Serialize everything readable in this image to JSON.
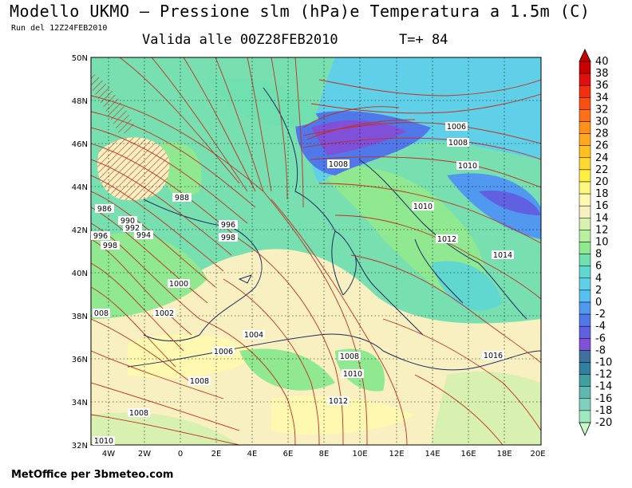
{
  "header": {
    "title": "Modello UKMO — Pressione slm (hPa)e Temperatura a 1.5m (C)",
    "run": "Run del 12Z24FEB2010",
    "valid": "Valida alle 00Z28FEB2010",
    "timestep": "T=+ 84"
  },
  "footer": {
    "credit": "MetOffice per 3bmeteo.com"
  },
  "map": {
    "lon_range": [
      -5,
      20
    ],
    "lat_range": [
      32,
      50
    ],
    "lon_ticks": [
      "4W",
      "2W",
      "0",
      "2E",
      "4E",
      "6E",
      "8E",
      "10E",
      "12E",
      "14E",
      "16E",
      "18E",
      "20E"
    ],
    "lat_ticks": [
      "50N",
      "48N",
      "46N",
      "44N",
      "42N",
      "40N",
      "38N",
      "36N",
      "34N",
      "32N"
    ],
    "isobar_labels": [
      "986",
      "988",
      "990",
      "992",
      "994",
      "996",
      "996",
      "998",
      "998",
      "1000",
      "1002",
      "1004",
      "1006",
      "1006",
      "1008",
      "1008",
      "1008",
      "1008",
      "1008",
      "1010",
      "1010",
      "1010",
      "1012",
      "1012",
      "1014",
      "1016",
      "1010",
      "008"
    ]
  },
  "colorbar": {
    "labels": [
      "40",
      "38",
      "36",
      "34",
      "32",
      "30",
      "28",
      "26",
      "24",
      "22",
      "20",
      "18",
      "16",
      "14",
      "12",
      "10",
      "8",
      "6",
      "4",
      "2",
      "0",
      "-2",
      "-4",
      "-6",
      "-8",
      "-10",
      "-12",
      "-14",
      "-16",
      "-18",
      "-20"
    ],
    "colors": [
      "#c80000",
      "#e01010",
      "#f03010",
      "#f85010",
      "#ff7018",
      "#ff9018",
      "#ffa820",
      "#ffc020",
      "#ffd830",
      "#fff040",
      "#fff880",
      "#fff8b0",
      "#f8f0c0",
      "#d8f0b0",
      "#b8f0a0",
      "#90e890",
      "#70e0b0",
      "#60d8d0",
      "#60d0e8",
      "#58c0f0",
      "#5098f0",
      "#5078e8",
      "#6060e0",
      "#8050d8",
      "#4070a0",
      "#3080a0",
      "#40a0a0",
      "#60b8b0",
      "#80d0c0",
      "#a0e8c0"
    ]
  }
}
